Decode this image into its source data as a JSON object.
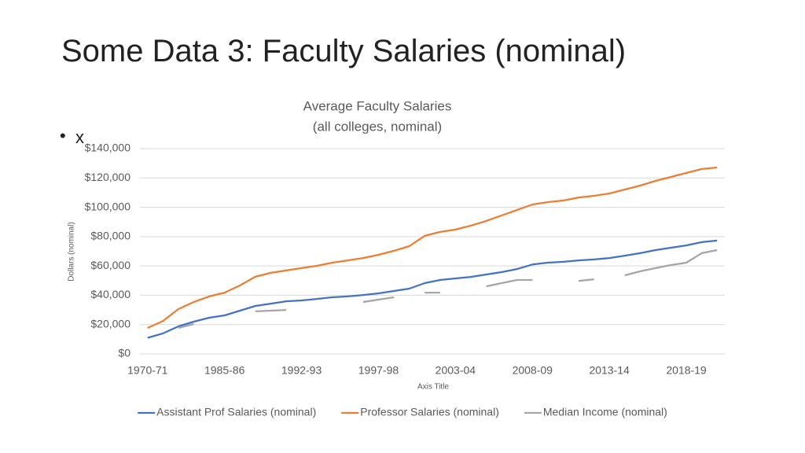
{
  "slide": {
    "title": "Some Data 3: Faculty Salaries (nominal)",
    "bullet": "x"
  },
  "chart_data": {
    "type": "line",
    "title": "Average Faculty Salaries",
    "subtitle": "(all colleges, nominal)",
    "x_label": "Axis Title",
    "y_label": "Dollars (nominal)",
    "categories": [
      "1970-71",
      null,
      null,
      null,
      null,
      "1985-86",
      null,
      null,
      null,
      null,
      "1992-93",
      null,
      null,
      null,
      null,
      "1997-98",
      null,
      null,
      null,
      null,
      "2003-04",
      null,
      null,
      null,
      null,
      "2008-09",
      null,
      null,
      null,
      null,
      "2013-14",
      null,
      null,
      null,
      null,
      "2018-19",
      null,
      null
    ],
    "series": [
      {
        "name": "Assistant Prof Salaries (nominal)",
        "color": "#4472c4",
        "values": [
          11000,
          14000,
          18800,
          22000,
          24700,
          26300,
          29500,
          32700,
          34300,
          35900,
          36500,
          37500,
          38600,
          39200,
          40200,
          41300,
          42900,
          44500,
          48300,
          50400,
          51500,
          52500,
          54200,
          55800,
          57900,
          61000,
          62200,
          62800,
          63800,
          64400,
          65400,
          67000,
          68700,
          70800,
          72400,
          74000,
          76200,
          77300
        ]
      },
      {
        "name": "Professor Salaries (nominal)",
        "color": "#ed7d31",
        "values": [
          17700,
          22500,
          30600,
          35400,
          39200,
          41800,
          46700,
          52600,
          55300,
          56900,
          58500,
          60100,
          62200,
          63800,
          65400,
          67600,
          70300,
          73500,
          80500,
          83200,
          84800,
          87500,
          90700,
          94400,
          98200,
          101900,
          103500,
          104600,
          106700,
          107800,
          109400,
          112100,
          114800,
          118000,
          120700,
          123400,
          126100,
          127100
        ]
      },
      {
        "name": "Median Income (nominal)",
        "color": "#a5a5a5",
        "values": [
          null,
          null,
          17700,
          20400,
          null,
          null,
          null,
          29000,
          29500,
          30000,
          null,
          null,
          null,
          null,
          35400,
          37000,
          38600,
          null,
          41800,
          41800,
          null,
          null,
          46100,
          48300,
          50400,
          50400,
          null,
          null,
          49800,
          50900,
          null,
          53600,
          56300,
          58500,
          60600,
          62200,
          68700,
          70800
        ]
      }
    ],
    "ylim": [
      0,
      140000
    ],
    "yticks": [
      {
        "value": 0,
        "label": "$0"
      },
      {
        "value": 20000,
        "label": "$20,000"
      },
      {
        "value": 40000,
        "label": "$40,000"
      },
      {
        "value": 60000,
        "label": "$60,000"
      },
      {
        "value": 80000,
        "label": "$80,000"
      },
      {
        "value": 100000,
        "label": "$100,000"
      },
      {
        "value": 120000,
        "label": "$120,000"
      },
      {
        "value": 140000,
        "label": "$140,000"
      }
    ],
    "grid": true,
    "legend": "bottom"
  }
}
